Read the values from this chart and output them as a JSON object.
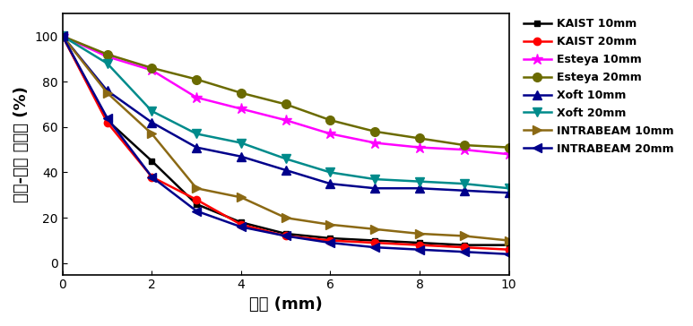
{
  "xlabel": "깐이 (mm)",
  "ylabel": "깐이-선량 백분율 (%)",
  "xlim": [
    0,
    10
  ],
  "ylim": [
    -5,
    110
  ],
  "xticks": [
    0,
    2,
    4,
    6,
    8,
    10
  ],
  "yticks": [
    0,
    20,
    40,
    60,
    80,
    100
  ],
  "series": [
    {
      "label": "KAIST 10mm",
      "color": "#000000",
      "marker": "s",
      "markersize": 5,
      "linewidth": 1.8,
      "x": [
        0,
        1,
        2,
        3,
        4,
        5,
        6,
        7,
        8,
        9,
        10
      ],
      "y": [
        100,
        63,
        45,
        26,
        18,
        13,
        11,
        10,
        9,
        8,
        8
      ]
    },
    {
      "label": "KAIST 20mm",
      "color": "#ff0000",
      "marker": "o",
      "markersize": 6,
      "linewidth": 1.8,
      "x": [
        0,
        1,
        2,
        3,
        4,
        5,
        6,
        7,
        8,
        9,
        10
      ],
      "y": [
        100,
        62,
        38,
        28,
        17,
        12,
        10,
        9,
        8,
        7,
        6
      ]
    },
    {
      "label": "Esteya 10mm",
      "color": "#ff00ff",
      "marker": "*",
      "markersize": 9,
      "linewidth": 1.8,
      "x": [
        0,
        1,
        2,
        3,
        4,
        5,
        6,
        7,
        8,
        9,
        10
      ],
      "y": [
        100,
        91,
        85,
        73,
        68,
        63,
        57,
        53,
        51,
        50,
        48
      ]
    },
    {
      "label": "Esteya 20mm",
      "color": "#6b6b00",
      "marker": "o",
      "markersize": 7,
      "linewidth": 1.8,
      "x": [
        0,
        1,
        2,
        3,
        4,
        5,
        6,
        7,
        8,
        9,
        10
      ],
      "y": [
        100,
        92,
        86,
        81,
        75,
        70,
        63,
        58,
        55,
        52,
        51
      ]
    },
    {
      "label": "Xoft 10mm",
      "color": "#00008b",
      "marker": "^",
      "markersize": 7,
      "linewidth": 1.8,
      "x": [
        0,
        1,
        2,
        3,
        4,
        5,
        6,
        7,
        8,
        9,
        10
      ],
      "y": [
        100,
        76,
        62,
        51,
        47,
        41,
        35,
        33,
        33,
        32,
        31
      ]
    },
    {
      "label": "Xoft 20mm",
      "color": "#008b8b",
      "marker": "v",
      "markersize": 7,
      "linewidth": 1.8,
      "x": [
        0,
        1,
        2,
        3,
        4,
        5,
        6,
        7,
        8,
        9,
        10
      ],
      "y": [
        100,
        88,
        67,
        57,
        53,
        46,
        40,
        37,
        36,
        35,
        33
      ]
    },
    {
      "label": "INTRABEAM 10mm",
      "color": "#8b6914",
      "marker": ">",
      "markersize": 7,
      "linewidth": 1.8,
      "x": [
        0,
        1,
        2,
        3,
        4,
        5,
        6,
        7,
        8,
        9,
        10
      ],
      "y": [
        100,
        75,
        57,
        33,
        29,
        20,
        17,
        15,
        13,
        12,
        10
      ]
    },
    {
      "label": "INTRABEAM 20mm",
      "color": "#00008b",
      "marker": "<",
      "markersize": 7,
      "linewidth": 1.8,
      "x": [
        0,
        1,
        2,
        3,
        4,
        5,
        6,
        7,
        8,
        9,
        10
      ],
      "y": [
        100,
        64,
        38,
        23,
        16,
        12,
        9,
        7,
        6,
        5,
        4
      ]
    }
  ],
  "figsize": [
    7.73,
    3.64
  ],
  "dpi": 100,
  "legend_fontsize": 9,
  "axis_label_fontsize": 13,
  "tick_fontsize": 10
}
